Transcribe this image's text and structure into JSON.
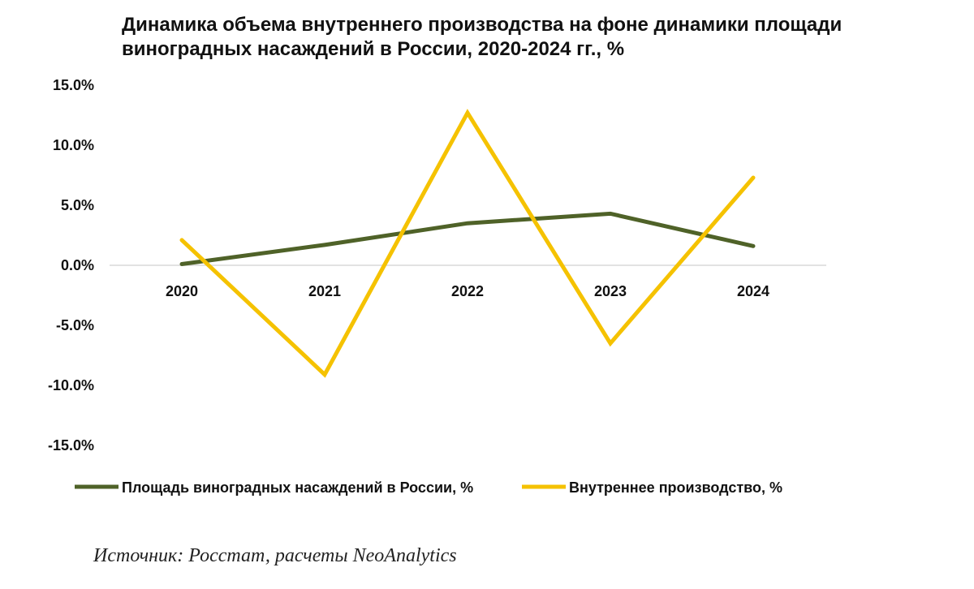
{
  "title": "Динамика объема внутреннего производства на фоне динамики площади виноградных насаждений в России, 2020-2024 гг., %",
  "source": "Источник: Росстат, расчеты NeoAnalytics",
  "colors": {
    "area": "#4f6228",
    "production": "#f5c200",
    "zero_line": "#d9d9d9"
  },
  "chart_data": {
    "type": "line",
    "title": "Динамика объема внутреннего производства на фоне динамики площади виноградных насаждений в России, 2020-2024 гг., %",
    "categories": [
      "2020",
      "2021",
      "2022",
      "2023",
      "2024"
    ],
    "ylim": [
      -15,
      15
    ],
    "yticks": [
      15,
      10,
      5,
      0,
      -5,
      -10,
      -15
    ],
    "ytick_labels": [
      "15.0%",
      "10.0%",
      "5.0%",
      "0.0%",
      "-5.0%",
      "-10.0%",
      "-15.0%"
    ],
    "grid": false,
    "legend_position": "bottom",
    "series": [
      {
        "name": "Площадь виноградных насаждений в России, %",
        "values": [
          0.1,
          1.7,
          3.5,
          4.3,
          1.6
        ],
        "color": "#4f6228"
      },
      {
        "name": "Внутреннее производство, %",
        "values": [
          2.1,
          -9.1,
          12.7,
          -6.5,
          7.3
        ],
        "color": "#f5c200"
      }
    ]
  }
}
